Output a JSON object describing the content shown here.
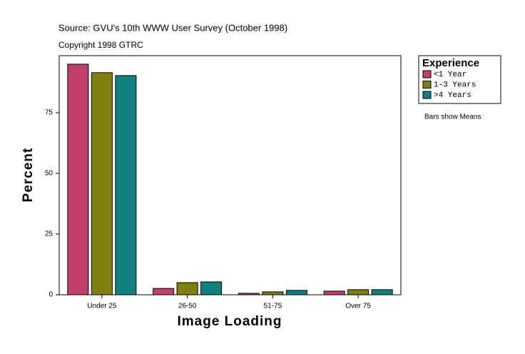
{
  "chart_data": {
    "type": "bar",
    "title": "Source: GVU's 10th WWW User Survey (October 1998)",
    "subtitle": "Copyright 1998 GTRC",
    "xlabel": "Image Loading",
    "ylabel": "Percent",
    "categories": [
      "Under 25",
      "26-50",
      "51-75",
      "Over 75"
    ],
    "series": [
      {
        "name": "<1 Year",
        "color": "#c0406a",
        "values": [
          95.0,
          2.6,
          0.6,
          1.5
        ]
      },
      {
        "name": "1-3 Years",
        "color": "#808010",
        "values": [
          91.5,
          5.0,
          1.2,
          2.1
        ]
      },
      {
        "name": ">4 Years",
        "color": "#108080",
        "values": [
          90.3,
          5.3,
          1.8,
          2.1
        ]
      }
    ],
    "ylim": [
      0,
      98.5
    ],
    "yticks": [
      0,
      25,
      50,
      75
    ],
    "legend_title": "Experience",
    "note": "Bars show Means"
  }
}
